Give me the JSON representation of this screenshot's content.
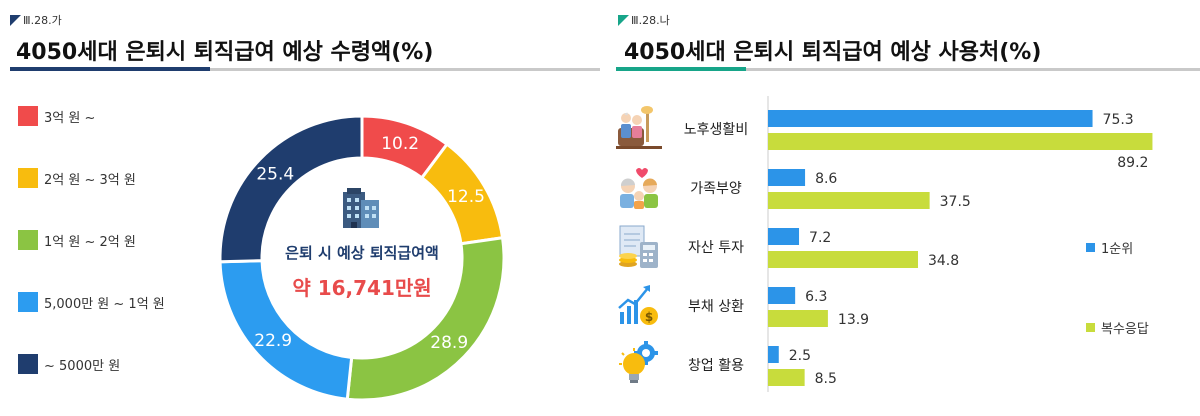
{
  "left": {
    "tag": "Ⅲ.28.가",
    "title": "4050세대 은퇴시 퇴직급여 예상 수령액(%)",
    "center_title": "은퇴 시 예상 퇴직급여액",
    "center_value": "약 16,741만원",
    "building_icon": "office-building-icon"
  },
  "right": {
    "tag": "Ⅲ.28.나",
    "title": "4050세대 은퇴시 퇴직급여 예상 사용처(%)",
    "category_icons": [
      "elderly-couple-icon",
      "family-icon",
      "calculator-coins-icon",
      "growth-chart-icon",
      "lightbulb-gear-icon"
    ]
  },
  "chart_data": [
    {
      "type": "pie",
      "title": "4050세대 은퇴시 퇴직급여 예상 수령액(%)",
      "categories": [
        "3억 원 ~",
        "2억 원 ~ 3억 원",
        "1억 원 ~ 2억 원",
        "5,000만 원 ~ 1억 원",
        "~ 5000만 원"
      ],
      "values": [
        10.2,
        12.5,
        28.9,
        22.9,
        25.4
      ],
      "colors": [
        "#f04b4b",
        "#f8bc0e",
        "#8bc443",
        "#2c9cf0",
        "#1f3d6e"
      ],
      "legend": "left"
    },
    {
      "type": "bar",
      "orientation": "horizontal",
      "title": "4050세대 은퇴시 퇴직급여 예상 사용처(%)",
      "categories": [
        "노후생활비",
        "가족부양",
        "자산 투자",
        "부채 상환",
        "창업 활용"
      ],
      "series": [
        {
          "name": "1순위",
          "values": [
            75.3,
            8.6,
            7.2,
            6.3,
            2.5
          ],
          "color": "#2c94e8"
        },
        {
          "name": "복수응답",
          "values": [
            89.2,
            37.5,
            34.8,
            13.9,
            8.5
          ],
          "color": "#c8dc3c"
        }
      ],
      "value_labels": {
        "s0": [
          "75.3",
          "8.6",
          "7.2",
          "6.3",
          "2.5"
        ],
        "s1": [
          "89.2",
          "37.5",
          "34.8",
          "13.9",
          "8.5"
        ]
      },
      "xlim": [
        0,
        100
      ],
      "legend": "right"
    }
  ]
}
